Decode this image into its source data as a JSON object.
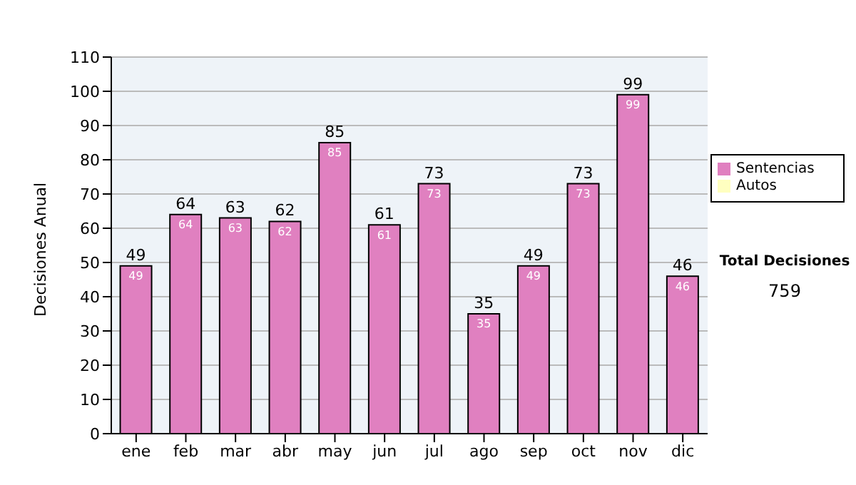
{
  "chart_data": {
    "type": "bar",
    "ylabel": "Decisiones Anual",
    "categories": [
      "ene",
      "feb",
      "mar",
      "abr",
      "may",
      "jun",
      "jul",
      "ago",
      "sep",
      "oct",
      "nov",
      "dic"
    ],
    "series": [
      {
        "name": "Sentencias",
        "color": "#e080c0",
        "values": [
          49,
          64,
          63,
          62,
          85,
          61,
          73,
          35,
          49,
          73,
          99,
          46
        ],
        "value_labels": [
          "49",
          "64",
          "63",
          "62",
          "85",
          "61",
          "73",
          "35",
          "49",
          "73",
          "99",
          "46"
        ]
      },
      {
        "name": "Autos",
        "color": "#ffffc0",
        "values": [
          0,
          0,
          0,
          0,
          0,
          0,
          0,
          0,
          0,
          0,
          0,
          0
        ]
      }
    ],
    "stacked": true,
    "totals": [
      "49",
      "64",
      "63",
      "62",
      "85",
      "61",
      "73",
      "35",
      "49",
      "73",
      "99",
      "46"
    ],
    "ylim": [
      0,
      110
    ],
    "yticks": [
      0,
      10,
      20,
      30,
      40,
      50,
      60,
      70,
      80,
      90,
      100,
      110
    ],
    "grid": "y",
    "legend": "right",
    "annotations": [
      "Total Decisiones",
      "759"
    ]
  }
}
